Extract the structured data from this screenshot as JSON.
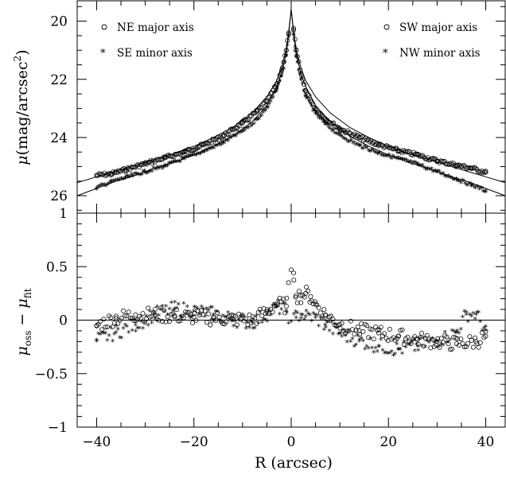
{
  "chart_data": [
    {
      "type": "scatter",
      "panel": "top",
      "xlabel": "",
      "ylabel": "μ(mag/arcsec²)",
      "ylabel_parts": {
        "mu": "μ",
        "unit": "(mag/arcsec",
        "sup": "2",
        "close": ")"
      },
      "xlim": [
        -44,
        44
      ],
      "ylim": [
        26.6,
        19.3
      ],
      "y_inverted": true,
      "yticks": [
        20,
        22,
        24,
        26
      ],
      "ytick_labels": [
        "20",
        "22",
        "24",
        "26"
      ],
      "legend": [
        {
          "label": "NE major axis",
          "marker": "circle",
          "placement": "top-left"
        },
        {
          "label": "SE minor axis",
          "marker": "star",
          "placement": "top-left"
        },
        {
          "label": "SW major axis",
          "marker": "circle",
          "placement": "top-right"
        },
        {
          "label": "NW minor axis",
          "marker": "star",
          "placement": "top-right"
        }
      ],
      "series": [
        {
          "name": "NE major axis",
          "marker": "circle",
          "x": [
            -40,
            -37,
            -34,
            -30,
            -26,
            -22,
            -18,
            -14,
            -10,
            -7,
            -5,
            -3,
            -2,
            -1,
            -0.5
          ],
          "y": [
            25.3,
            25.25,
            25.1,
            24.9,
            24.7,
            24.5,
            24.25,
            23.95,
            23.5,
            23.1,
            22.75,
            22.2,
            21.7,
            21.0,
            20.4
          ]
        },
        {
          "name": "SW major axis",
          "marker": "circle",
          "x": [
            0.5,
            1,
            2,
            3,
            5,
            7,
            10,
            14,
            18,
            22,
            26,
            30,
            34,
            37,
            40
          ],
          "y": [
            20.3,
            21.0,
            21.8,
            22.4,
            23.0,
            23.35,
            23.7,
            24.0,
            24.25,
            24.45,
            24.6,
            24.8,
            24.95,
            25.05,
            25.2
          ]
        },
        {
          "name": "SE minor axis",
          "marker": "star",
          "x": [
            -40,
            -37,
            -34,
            -30,
            -26,
            -22,
            -18,
            -14,
            -10,
            -7,
            -5,
            -3,
            -2,
            -1,
            -0.5
          ],
          "y": [
            25.75,
            25.55,
            25.4,
            25.2,
            25.0,
            24.75,
            24.5,
            24.2,
            23.8,
            23.4,
            23.0,
            22.4,
            21.9,
            21.2,
            20.5
          ]
        },
        {
          "name": "NW minor axis",
          "marker": "star",
          "x": [
            0.5,
            1,
            2,
            3,
            5,
            7,
            10,
            14,
            18,
            22,
            26,
            30,
            34,
            37,
            40
          ],
          "y": [
            20.5,
            21.2,
            22.0,
            22.6,
            23.2,
            23.55,
            23.95,
            24.3,
            24.55,
            24.75,
            24.95,
            25.2,
            25.45,
            25.65,
            25.85
          ]
        }
      ],
      "fit_curves": [
        {
          "x": [
            -44,
            -40,
            -36,
            -32,
            -28,
            -24,
            -20,
            -16,
            -12,
            -8,
            -5,
            -3,
            -2,
            -1,
            -0.5,
            0,
            0.5,
            1,
            2,
            3,
            5,
            8,
            12,
            16,
            20,
            24,
            28,
            32,
            36,
            40,
            44
          ],
          "y": [
            25.55,
            25.35,
            25.15,
            24.95,
            24.75,
            24.55,
            24.3,
            24.0,
            23.65,
            23.15,
            22.6,
            22.05,
            21.6,
            20.95,
            20.35,
            19.6,
            20.35,
            20.95,
            21.6,
            22.05,
            22.6,
            23.15,
            23.65,
            24.0,
            24.3,
            24.55,
            24.75,
            24.95,
            25.15,
            25.35,
            25.55
          ]
        },
        {
          "x": [
            -44,
            -40,
            -36,
            -32,
            -28,
            -24,
            -20,
            -16,
            -12,
            -8,
            -5,
            -3,
            -2,
            -1,
            -0.5,
            0,
            0.5,
            1,
            2,
            3,
            5,
            8,
            12,
            16,
            20,
            24,
            28,
            32,
            36,
            40,
            44
          ],
          "y": [
            26.0,
            25.75,
            25.5,
            25.3,
            25.05,
            24.85,
            24.6,
            24.3,
            23.95,
            23.45,
            22.9,
            22.25,
            21.8,
            21.1,
            20.45,
            19.6,
            20.45,
            21.1,
            21.8,
            22.25,
            22.9,
            23.45,
            23.95,
            24.3,
            24.6,
            24.85,
            25.05,
            25.3,
            25.5,
            25.75,
            26.0
          ]
        }
      ]
    },
    {
      "type": "scatter",
      "panel": "bottom",
      "xlabel": "R (arcsec)",
      "ylabel": "μoss − μfit",
      "ylabel_parts": {
        "mu1": "μ",
        "sub1": "oss",
        "minus": "−",
        "mu2": "μ",
        "sub2": "fit"
      },
      "xlim": [
        -44,
        44
      ],
      "ylim": [
        -1.0,
        1.0
      ],
      "xticks": [
        -40,
        -20,
        0,
        20,
        40
      ],
      "xtick_labels": [
        "−40",
        "−20",
        "0",
        "20",
        "40"
      ],
      "yticks": [
        -1,
        -0.5,
        0,
        0.5,
        1
      ],
      "ytick_labels": [
        "−1",
        "−0.5",
        "0",
        "0.5",
        "1"
      ],
      "zero_line": 0,
      "series": [
        {
          "name": "",
          "marker": "circle",
          "x": [
            -40,
            -36,
            -32,
            -28,
            -24,
            -20,
            -16,
            -12,
            -8,
            -5,
            -3,
            -1,
            0,
            0.5,
            1,
            2,
            3,
            4,
            5,
            7,
            10,
            14,
            18,
            22,
            26,
            30,
            34,
            38,
            40
          ],
          "y": [
            -0.05,
            0.02,
            0.05,
            0.05,
            0.04,
            0.03,
            0.02,
            0.01,
            0.0,
            0.08,
            0.15,
            0.13,
            0.47,
            0.44,
            0.23,
            0.23,
            0.25,
            0.22,
            0.15,
            0.05,
            -0.04,
            -0.1,
            -0.12,
            -0.15,
            -0.18,
            -0.2,
            -0.22,
            -0.2,
            -0.15
          ]
        },
        {
          "name": "",
          "marker": "star",
          "x": [
            -40,
            -36,
            -32,
            -28,
            -24,
            -20,
            -16,
            -12,
            -8,
            -5,
            -3,
            -1,
            0,
            1,
            2,
            3,
            5,
            7,
            10,
            14,
            18,
            22,
            26,
            30,
            34,
            36,
            38,
            40
          ],
          "y": [
            -0.2,
            -0.12,
            -0.05,
            0.05,
            0.1,
            0.08,
            0.05,
            0.0,
            -0.03,
            0.05,
            0.12,
            0.08,
            -0.02,
            0.02,
            0.05,
            0.03,
            0.02,
            -0.05,
            -0.13,
            -0.2,
            -0.25,
            -0.28,
            -0.25,
            -0.2,
            -0.12,
            0.05,
            0.05,
            -0.1
          ]
        }
      ]
    }
  ]
}
